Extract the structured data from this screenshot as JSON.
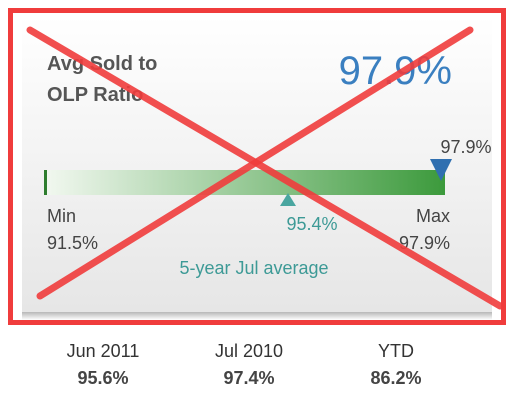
{
  "header": {
    "title_lines": [
      "Avg Sold to",
      "OLP Ratio"
    ],
    "value": "97.9%"
  },
  "gauge": {
    "current_label": "97.9%",
    "average_label": "95.4%",
    "min_label": "Min",
    "min_value": "91.5%",
    "max_label": "Max",
    "max_value": "97.9%",
    "caption": "5-year Jul average"
  },
  "comparisons": [
    {
      "period": "Jun 2011",
      "value": "95.6%"
    },
    {
      "period": "Jul 2010",
      "value": "97.4%"
    },
    {
      "period": "YTD",
      "value": "86.2%"
    }
  ]
}
